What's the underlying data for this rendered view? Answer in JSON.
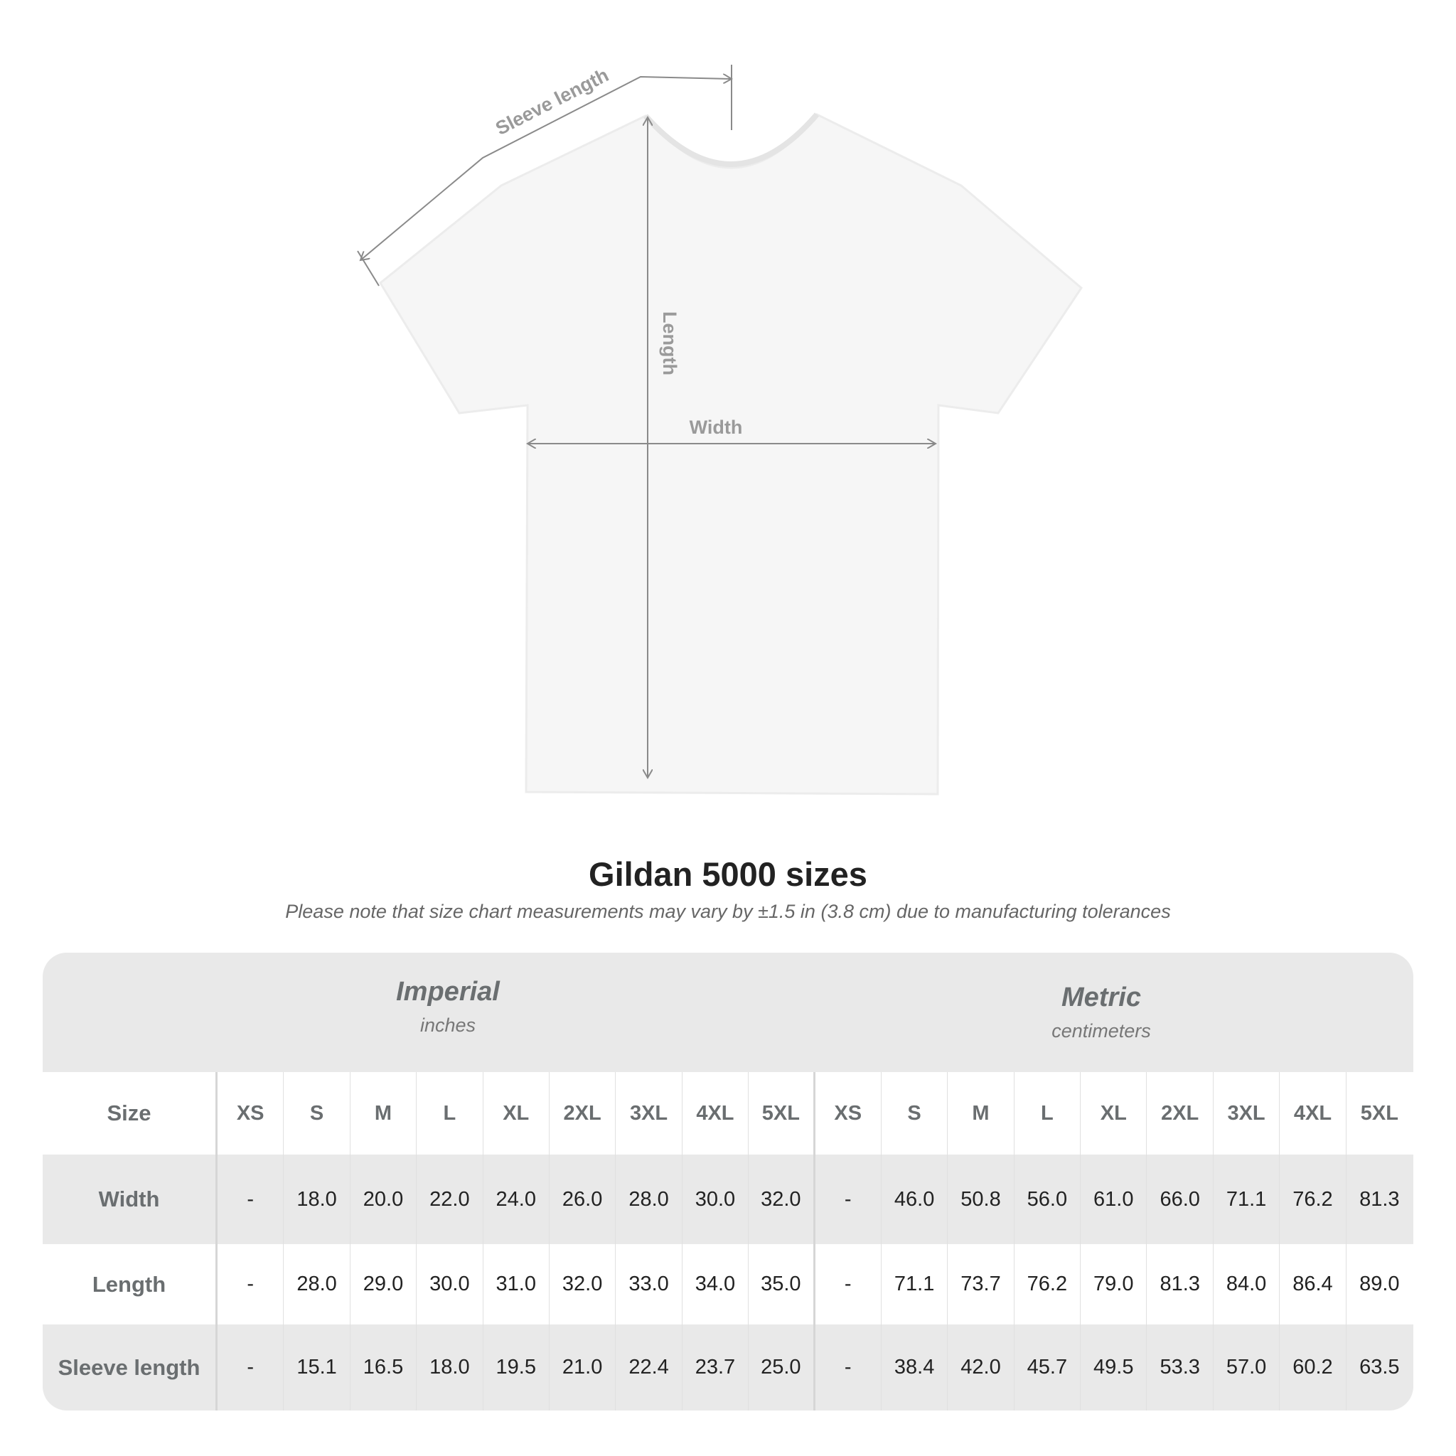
{
  "diagram": {
    "labels": {
      "sleeve": "Sleeve length",
      "length": "Length",
      "width": "Width"
    }
  },
  "title": "Gildan 5000 sizes",
  "note": "Please note that size chart measurements may vary by ±1.5 in (3.8 cm) due to manufacturing tolerances",
  "imperial": {
    "title": "Imperial",
    "unit": "inches"
  },
  "metric": {
    "title": "Metric",
    "unit": "centimeters"
  },
  "table": {
    "size_label": "Size",
    "sizes": [
      "XS",
      "S",
      "M",
      "L",
      "XL",
      "2XL",
      "3XL",
      "4XL",
      "5XL"
    ],
    "rows": [
      {
        "label": "Width",
        "imperial": [
          "-",
          "18.0",
          "20.0",
          "22.0",
          "24.0",
          "26.0",
          "28.0",
          "30.0",
          "32.0"
        ],
        "metric": [
          "-",
          "46.0",
          "50.8",
          "56.0",
          "61.0",
          "66.0",
          "71.1",
          "76.2",
          "81.3"
        ]
      },
      {
        "label": "Length",
        "imperial": [
          "-",
          "28.0",
          "29.0",
          "30.0",
          "31.0",
          "32.0",
          "33.0",
          "34.0",
          "35.0"
        ],
        "metric": [
          "-",
          "71.1",
          "73.7",
          "76.2",
          "79.0",
          "81.3",
          "84.0",
          "86.4",
          "89.0"
        ]
      },
      {
        "label": "Sleeve length",
        "imperial": [
          "-",
          "15.1",
          "16.5",
          "18.0",
          "19.5",
          "21.0",
          "22.4",
          "23.7",
          "25.0"
        ],
        "metric": [
          "-",
          "38.4",
          "42.0",
          "45.7",
          "49.5",
          "53.3",
          "57.0",
          "60.2",
          "63.5"
        ]
      }
    ]
  }
}
